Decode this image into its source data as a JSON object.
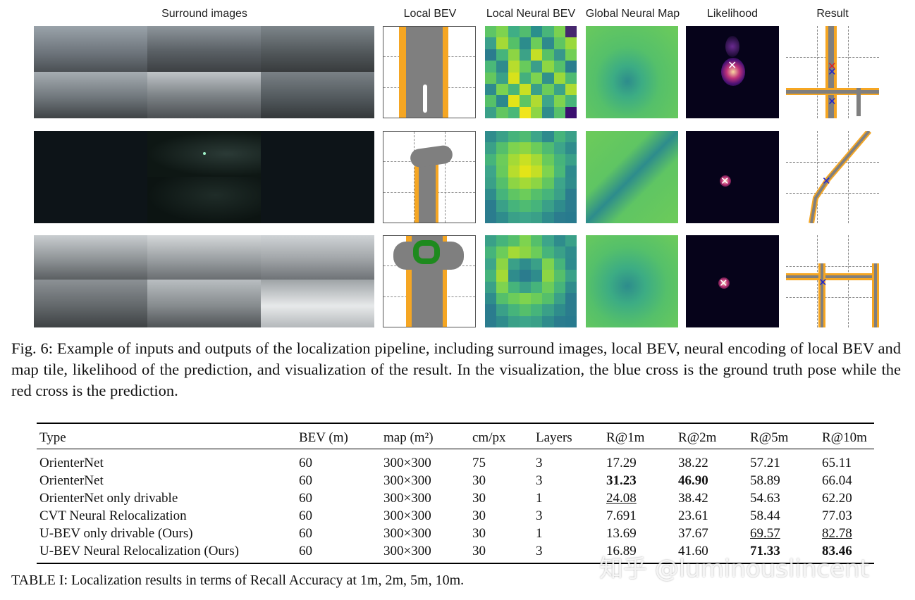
{
  "figure": {
    "column_headers": [
      "Surround images",
      "Local BEV",
      "Local Neural BEV",
      "Global Neural Map",
      "Likelihood",
      "Result"
    ]
  },
  "caption": {
    "label": "Fig. 6:",
    "text": "Example of inputs and outputs of the localization pipeline, including surround images, local BEV, neural encoding of local BEV and map tile, likelihood of the prediction, and visualization of the result. In the visualization, the blue cross is the ground truth pose while the red cross is the prediction."
  },
  "table": {
    "headers": [
      "Type",
      "BEV (m)",
      "map (m²)",
      "cm/px",
      "Layers",
      "R@1m",
      "R@2m",
      "R@5m",
      "R@10m"
    ],
    "rows": [
      {
        "type": "OrienterNet",
        "bev": "60",
        "map": "300×300",
        "cmpx": "75",
        "layers": "3",
        "r1": "17.29",
        "r2": "38.22",
        "r5": "57.21",
        "r10": "65.11"
      },
      {
        "type": "OrienterNet",
        "bev": "60",
        "map": "300×300",
        "cmpx": "30",
        "layers": "3",
        "r1": "31.23",
        "r2": "46.90",
        "r5": "58.89",
        "r10": "66.04"
      },
      {
        "type": "OrienterNet only drivable",
        "bev": "60",
        "map": "300×300",
        "cmpx": "30",
        "layers": "1",
        "r1": "24.08",
        "r2": "38.42",
        "r5": "54.63",
        "r10": "62.20"
      },
      {
        "type": "CVT Neural Relocalization",
        "bev": "60",
        "map": "300×300",
        "cmpx": "30",
        "layers": "3",
        "r1": "7.691",
        "r2": "23.61",
        "r5": "58.44",
        "r10": "77.03"
      },
      {
        "type": "U-BEV only drivable (Ours)",
        "bev": "60",
        "map": "300×300",
        "cmpx": "30",
        "layers": "1",
        "r1": "13.69",
        "r2": "37.67",
        "r5": "69.57",
        "r10": "82.78"
      },
      {
        "type": "U-BEV Neural Relocalization (Ours)",
        "bev": "60",
        "map": "300×300",
        "cmpx": "30",
        "layers": "3",
        "r1": "16.89",
        "r2": "41.60",
        "r5": "71.33",
        "r10": "83.46"
      }
    ],
    "caption": "TABLE I: Localization results in terms of Recall Accuracy at 1m, 2m, 5m, 10m."
  },
  "watermark": "知乎 @luminouslincent",
  "colors": {
    "road": "#7f7f7f",
    "sidewalk": "#f5a623",
    "crossing": "#1e8a1e",
    "gt_cross": "#2222cc",
    "pred_cross": "#dd2222"
  }
}
